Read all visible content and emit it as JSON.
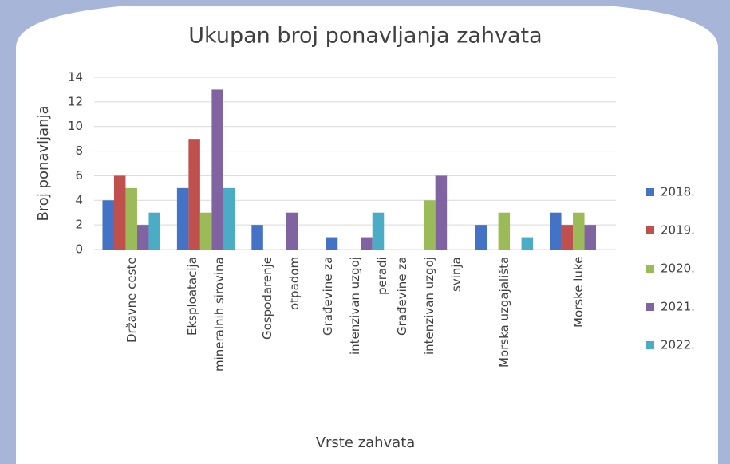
{
  "chart_data": {
    "type": "bar",
    "title": "Ukupan broj ponavljanja zahvata",
    "xlabel": "Vrste zahvata",
    "ylabel": "Broj ponavljanja",
    "categories": [
      "Državne ceste",
      "Eksploatacija mineralnih sirovina",
      "Gospodarenje otpadom",
      "Građevine za intenzivan uzgoj peradi",
      "Građevine za intenzivan uzgoj svinja",
      "Morska uzgajališta",
      "Morske luke"
    ],
    "series": [
      {
        "name": "2018.",
        "color": "#4472c4",
        "values": [
          4,
          5,
          2,
          1,
          0,
          2,
          3
        ]
      },
      {
        "name": "2019.",
        "color": "#c0504d",
        "values": [
          6,
          9,
          0,
          0,
          0,
          0,
          2
        ]
      },
      {
        "name": "2020.",
        "color": "#9bbb59",
        "values": [
          5,
          3,
          0,
          0,
          4,
          3,
          3
        ]
      },
      {
        "name": "2021.",
        "color": "#8064a2",
        "values": [
          2,
          13,
          3,
          1,
          6,
          0,
          2
        ]
      },
      {
        "name": "2022.",
        "color": "#4bacc6",
        "values": [
          3,
          5,
          0,
          3,
          0,
          1,
          0
        ]
      }
    ],
    "ylim": [
      0,
      14
    ],
    "yticks": [
      0,
      2,
      4,
      6,
      8,
      10,
      12,
      14
    ],
    "grid": true,
    "legend": "right"
  }
}
